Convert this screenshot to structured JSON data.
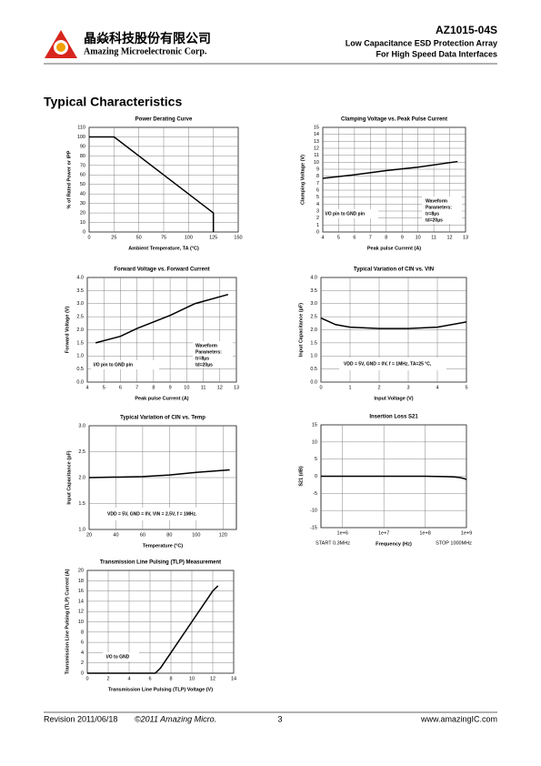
{
  "header": {
    "company_cn": "晶焱科技股份有限公司",
    "company_en": "Amazing Microelectronic Corp.",
    "part": "AZ1015-04S",
    "line1": "Low Capacitance ESD Protection Array",
    "line2": "For High Speed Data Interfaces"
  },
  "heading": "Typical Characteristics",
  "footer": {
    "revision": "Revision 2011/06/18",
    "copyright": "©2011 Amazing Micro.",
    "page": "3",
    "url": "www.amazingIC.com"
  },
  "chart_data": [
    {
      "type": "line",
      "title": "Power Derating Curve",
      "x_label": "Ambient Temperature, TA (°C)",
      "y_label": "% of Rated Power or IPP",
      "x": [
        0,
        25,
        125,
        125
      ],
      "values": [
        100,
        100,
        20,
        0
      ],
      "color": "#000000",
      "xlim": [
        0,
        150
      ],
      "xticks": [
        0,
        25,
        50,
        75,
        100,
        125,
        150
      ],
      "ylim": [
        0,
        110
      ],
      "yticks": [
        0,
        10,
        20,
        30,
        40,
        50,
        60,
        70,
        80,
        90,
        100,
        110
      ],
      "grid": true,
      "annotations": []
    },
    {
      "type": "line",
      "title": "Clamping Voltage vs. Peak Pulse Current",
      "x_label": "Peak pulse Current (A)",
      "y_label": "Clamping Voltage (V)",
      "x": [
        4,
        6,
        8,
        10,
        12.5
      ],
      "values": [
        7.7,
        8.2,
        8.8,
        9.3,
        10.1
      ],
      "color": "#000000",
      "xlim": [
        4,
        13
      ],
      "xticks": [
        4,
        5,
        6,
        7,
        8,
        9,
        10,
        11,
        12,
        13
      ],
      "ylim": [
        0,
        15
      ],
      "yticks": [
        0,
        1,
        2,
        3,
        4,
        5,
        6,
        7,
        8,
        9,
        10,
        11,
        12,
        13,
        14,
        15
      ],
      "grid": true,
      "annotations": [
        "Waveform",
        "Parameters:",
        "tr=8µs",
        "td=20µs",
        "I/O pin to GND pin"
      ]
    },
    {
      "type": "line",
      "title": "Forward Voltage vs. Forward Current",
      "x_label": "Peak pulse Current (A)",
      "y_label": "Forward Voltage (V)",
      "x": [
        4.5,
        6,
        7,
        9,
        10.5,
        12.5
      ],
      "values": [
        1.5,
        1.75,
        2.05,
        2.55,
        3.0,
        3.35
      ],
      "color": "#000000",
      "xlim": [
        4,
        13
      ],
      "xticks": [
        4,
        5,
        6,
        7,
        8,
        9,
        10,
        11,
        12,
        13
      ],
      "ylim": [
        0,
        4
      ],
      "yticks": [
        {
          "value": 0,
          "label": "0.0"
        },
        0.5,
        {
          "value": 1,
          "label": "1.0"
        },
        1.5,
        {
          "value": 2,
          "label": "2.0"
        },
        2.5,
        {
          "value": 3,
          "label": "3.0"
        },
        3.5,
        {
          "value": 4,
          "label": "4.0"
        }
      ],
      "grid": true,
      "annotations": [
        "Waveform",
        "Parameters:",
        "tr=8µs",
        "td=20µs",
        "I/O pin to GND pin"
      ]
    },
    {
      "type": "line",
      "title": "Typical Variation of CIN vs. VIN",
      "x_label": "Input Voltage (V)",
      "y_label": "Input Capacitance (pF)",
      "x": [
        0,
        0.5,
        1,
        2,
        3,
        4,
        5
      ],
      "values": [
        2.45,
        2.2,
        2.1,
        2.05,
        2.05,
        2.1,
        2.3
      ],
      "color": "#000000",
      "xlim": [
        0,
        5
      ],
      "xticks": [
        0,
        1,
        2,
        3,
        4,
        5
      ],
      "ylim": [
        0,
        4
      ],
      "yticks": [
        {
          "value": 0,
          "label": "0.0"
        },
        0.5,
        {
          "value": 1,
          "label": "1.0"
        },
        1.5,
        {
          "value": 2,
          "label": "2.0"
        },
        2.5,
        {
          "value": 3,
          "label": "3.0"
        },
        3.5,
        {
          "value": 4,
          "label": "4.0"
        }
      ],
      "grid": true,
      "annotations": [
        "VDD = 5V, GND = 0V, f = 1MHz, TA=25 °C,"
      ]
    },
    {
      "type": "line",
      "title": "Typical Variation of CIN vs. Temp",
      "x_label": "Temperature (°C)",
      "y_label": "Input Capacitance (pF)",
      "x": [
        20,
        60,
        80,
        100,
        125
      ],
      "values": [
        2.0,
        2.02,
        2.05,
        2.1,
        2.15
      ],
      "color": "#000000",
      "xlim": [
        20,
        130
      ],
      "xticks": [
        20,
        40,
        60,
        80,
        100,
        120
      ],
      "ylim": [
        1,
        3
      ],
      "yticks": [
        {
          "value": 1,
          "label": "1.0"
        },
        1.5,
        {
          "value": 2,
          "label": "2.0"
        },
        2.5,
        {
          "value": 3,
          "label": "3.0"
        }
      ],
      "grid": true,
      "annotations": [
        "VDD = 5V, GND = 0V, VIN = 2.5V, f = 1MHz."
      ]
    },
    {
      "type": "line",
      "title": "Insertion Loss S21",
      "x_label": "Frequency (Hz)",
      "y_label": "S21 (dB)",
      "x_scale": "log",
      "x": [
        300000,
        1000000,
        10000000,
        100000000,
        300000000,
        500000000,
        700000000,
        900000000,
        1000000000
      ],
      "values": [
        0,
        0,
        0,
        0,
        -0.1,
        -0.2,
        -0.4,
        -0.7,
        -1.0
      ],
      "color": "#000000",
      "xlim": [
        300000,
        1000000000
      ],
      "xticks": [
        {
          "value": 1000000,
          "label": "1e+6"
        },
        {
          "value": 10000000,
          "label": "1e+7"
        },
        {
          "value": 100000000,
          "label": "1e+8"
        },
        {
          "value": 1000000000,
          "label": "1e+9"
        }
      ],
      "ylim": [
        -15,
        15
      ],
      "yticks": [
        -15,
        -10,
        -5,
        0,
        5,
        10,
        15
      ],
      "grid": true,
      "start_label": "START 0.3MHz",
      "stop_label": "STOP 1000MHz",
      "annotations": []
    },
    {
      "type": "line",
      "title": "Transmission Line Pulsing (TLP) Measurement",
      "x_label": "Transmission Line Pulsing (TLP) Voltage (V)",
      "y_label": "Transmission Line Pulsing (TLP) Current (A)",
      "x": [
        0,
        6.5,
        7,
        8,
        9,
        10,
        11,
        12,
        12.5
      ],
      "values": [
        0,
        0,
        1,
        4,
        7,
        10,
        13,
        16,
        17
      ],
      "color": "#000000",
      "xlim": [
        0,
        14
      ],
      "xticks": [
        0,
        2,
        4,
        6,
        8,
        10,
        12,
        14
      ],
      "ylim": [
        0,
        20
      ],
      "yticks": [
        0,
        2,
        4,
        6,
        8,
        10,
        12,
        14,
        16,
        18,
        20
      ],
      "grid": true,
      "annotations": [
        "I/O to GND"
      ]
    }
  ]
}
